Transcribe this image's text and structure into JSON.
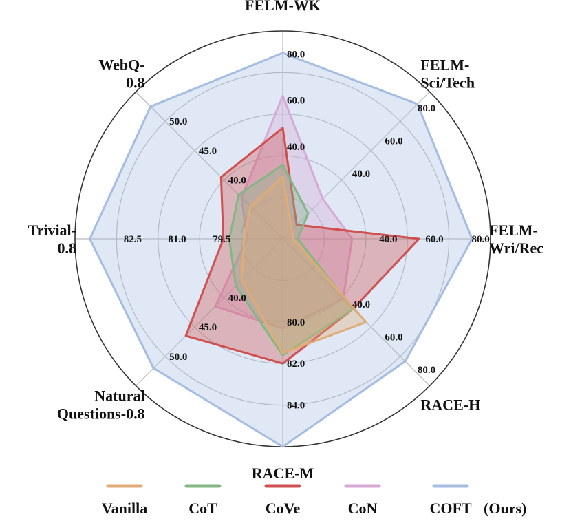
{
  "chart_data": {
    "type": "radar",
    "axes": [
      {
        "label_lines": [
          "FELM-WK"
        ],
        "min": 0,
        "max": 90,
        "ticks": [
          40,
          60,
          80
        ],
        "tick_labels": [
          "40.0",
          "60.0",
          "80.0"
        ]
      },
      {
        "label_lines": [
          "FELM-",
          "Sci/Tech"
        ],
        "min": 0,
        "max": 90,
        "ticks": [
          40,
          60,
          80
        ],
        "tick_labels": [
          "40.0",
          "60.0",
          "80.0"
        ]
      },
      {
        "label_lines": [
          "FELM-",
          "Wri/Rec"
        ],
        "min": 0,
        "max": 90,
        "ticks": [
          40,
          60,
          80
        ],
        "tick_labels": [
          "40.0",
          "60.0",
          "80.0"
        ]
      },
      {
        "label_lines": [
          "RACE-H"
        ],
        "min": 0,
        "max": 90,
        "ticks": [
          40,
          60,
          80
        ],
        "tick_labels": [
          "40.0",
          "60.0",
          "80.0"
        ]
      },
      {
        "label_lines": [
          "RACE-M"
        ],
        "min": 76,
        "max": 86,
        "ticks": [
          80,
          82,
          84
        ],
        "tick_labels": [
          "80.0",
          "82.0",
          "84.0"
        ]
      },
      {
        "label_lines": [
          "Natural",
          "Questions-0.8"
        ],
        "min": 30,
        "max": 55,
        "ticks": [
          40,
          45,
          50
        ],
        "tick_labels": [
          "40.0",
          "45.0",
          "50.0"
        ]
      },
      {
        "label_lines": [
          "Trivial-",
          "0.8"
        ],
        "min": 77,
        "max": 84,
        "ticks": [
          79.5,
          81,
          82.5
        ],
        "tick_labels": [
          "79.5",
          "81.0",
          "82.5"
        ]
      },
      {
        "label_lines": [
          "WebQ-",
          "0.8"
        ],
        "min": 30,
        "max": 55,
        "ticks": [
          40,
          45,
          50
        ],
        "tick_labels": [
          "40.0",
          "45.0",
          "50.0"
        ]
      }
    ],
    "series": [
      {
        "name": "COFT",
        "color": "#a4bde0",
        "values": [
          80.5,
          82.5,
          82.0,
          75.0,
          86.0,
          52.0,
          83.5,
          52.5
        ]
      },
      {
        "name": "CoN",
        "color": "#d7a9d4",
        "values": [
          62.0,
          24.5,
          30.0,
          37.0,
          80.3,
          41.5,
          78.2,
          37.0
        ]
      },
      {
        "name": "CoVe",
        "color": "#d05050",
        "values": [
          48.0,
          8.5,
          59.0,
          43.0,
          82.0,
          46.5,
          79.0,
          40.5
        ]
      },
      {
        "name": "CoT",
        "color": "#82b783",
        "values": [
          32.0,
          15.5,
          6.5,
          43.0,
          81.6,
          38.0,
          78.8,
          37.5
        ]
      },
      {
        "name": "Vanilla",
        "color": "#e0ab75",
        "values": [
          27.0,
          5.5,
          4.5,
          51.0,
          81.5,
          37.0,
          78.3,
          35.5
        ]
      }
    ],
    "legend": {
      "placement": "bottom",
      "entries": [
        {
          "label": "Vanilla",
          "color": "#e0ab75"
        },
        {
          "label": "CoT",
          "color": "#82b783"
        },
        {
          "label": "CoVe",
          "color": "#d05050"
        },
        {
          "label": "CoN",
          "color": "#d7a9d4"
        },
        {
          "label": "COFT",
          "color": "#a4bde0"
        }
      ],
      "note": "(Ours)"
    },
    "grid": true
  }
}
